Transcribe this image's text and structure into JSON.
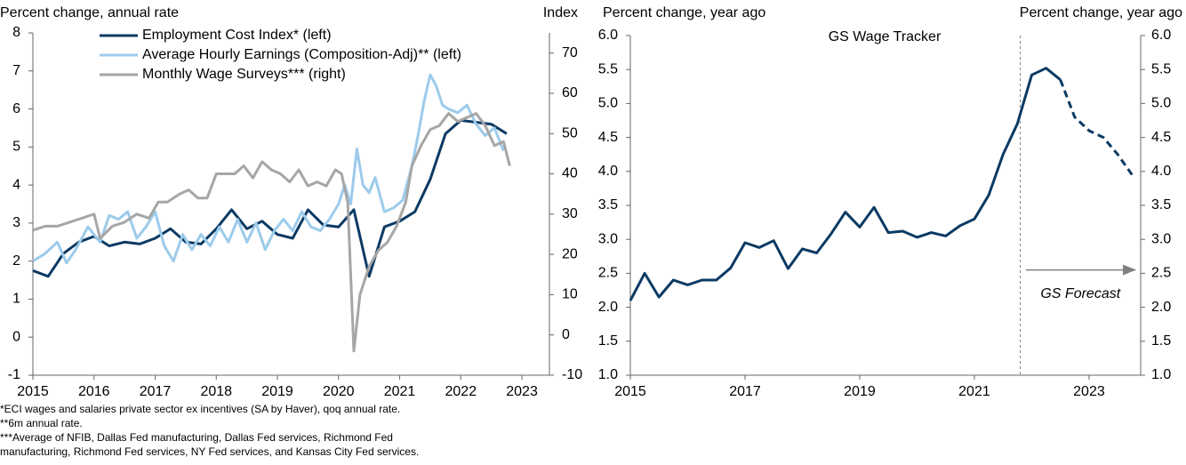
{
  "chart_data": [
    {
      "type": "line",
      "y_label": "Percent change, annual rate",
      "y2_label": "Index",
      "xlim": [
        2015,
        2023.45
      ],
      "xticks": [
        2015,
        2016,
        2017,
        2018,
        2019,
        2020,
        2021,
        2022,
        2023
      ],
      "ylim": [
        -1,
        8
      ],
      "yticks": [
        -1,
        0,
        1,
        2,
        3,
        4,
        5,
        6,
        7,
        8
      ],
      "y2lim": [
        -10,
        75
      ],
      "y2ticks": [
        -10,
        0,
        10,
        20,
        30,
        40,
        50,
        60,
        70
      ],
      "series": [
        {
          "name": "Employment Cost Index* (left)",
          "color": "#0b3a63",
          "axis": "y",
          "x": [
            2015,
            2015.25,
            2015.5,
            2015.75,
            2016,
            2016.25,
            2016.5,
            2016.75,
            2017,
            2017.25,
            2017.5,
            2017.75,
            2018,
            2018.25,
            2018.5,
            2018.75,
            2019,
            2019.25,
            2019.5,
            2019.75,
            2020,
            2020.25,
            2020.5,
            2020.75,
            2021,
            2021.25,
            2021.5,
            2021.75,
            2022,
            2022.25,
            2022.5,
            2022.75
          ],
          "values": [
            1.75,
            1.6,
            2.2,
            2.5,
            2.65,
            2.4,
            2.5,
            2.45,
            2.6,
            2.85,
            2.5,
            2.45,
            2.85,
            3.35,
            2.85,
            3.05,
            2.7,
            2.6,
            3.35,
            2.95,
            2.9,
            3.35,
            1.6,
            2.9,
            3.05,
            3.3,
            4.15,
            5.35,
            5.7,
            5.65,
            5.6,
            5.35
          ]
        },
        {
          "name": "Average Hourly Earnings (Composition-Adj)** (left)",
          "color": "#9ccbeb",
          "axis": "y",
          "x": [
            2015,
            2015.2,
            2015.4,
            2015.55,
            2015.7,
            2015.9,
            2016.1,
            2016.25,
            2016.4,
            2016.55,
            2016.7,
            2016.85,
            2017,
            2017.15,
            2017.3,
            2017.45,
            2017.6,
            2017.75,
            2017.9,
            2018.05,
            2018.2,
            2018.35,
            2018.5,
            2018.65,
            2018.8,
            2018.95,
            2019.1,
            2019.25,
            2019.4,
            2019.55,
            2019.7,
            2019.85,
            2020,
            2020.1,
            2020.2,
            2020.3,
            2020.4,
            2020.5,
            2020.6,
            2020.75,
            2020.9,
            2021.05,
            2021.2,
            2021.3,
            2021.4,
            2021.5,
            2021.6,
            2021.7,
            2021.8,
            2021.95,
            2022.1,
            2022.25,
            2022.4,
            2022.55,
            2022.7
          ],
          "values": [
            2.0,
            2.2,
            2.5,
            1.95,
            2.3,
            2.9,
            2.5,
            3.2,
            3.1,
            3.3,
            2.6,
            2.9,
            3.3,
            2.4,
            2.0,
            2.7,
            2.3,
            2.7,
            2.4,
            2.9,
            2.5,
            3.1,
            2.5,
            3.0,
            2.3,
            2.8,
            3.1,
            2.8,
            3.3,
            2.9,
            2.8,
            3.1,
            3.5,
            4.0,
            3.5,
            4.95,
            4.0,
            3.8,
            4.2,
            3.3,
            3.4,
            3.6,
            4.5,
            5.3,
            6.2,
            6.9,
            6.6,
            6.1,
            6.0,
            5.9,
            6.1,
            5.6,
            5.3,
            5.5,
            4.9
          ]
        },
        {
          "name": "Monthly Wage Surveys*** (right)",
          "color": "#a6a6a6",
          "axis": "y2",
          "x": [
            2015,
            2015.2,
            2015.4,
            2015.6,
            2015.8,
            2016,
            2016.1,
            2016.3,
            2016.5,
            2016.7,
            2016.9,
            2017.05,
            2017.2,
            2017.4,
            2017.55,
            2017.7,
            2017.85,
            2018,
            2018.15,
            2018.3,
            2018.45,
            2018.6,
            2018.75,
            2018.9,
            2019.05,
            2019.2,
            2019.35,
            2019.5,
            2019.65,
            2019.8,
            2019.95,
            2020.05,
            2020.15,
            2020.25,
            2020.35,
            2020.5,
            2020.65,
            2020.8,
            2020.95,
            2021.1,
            2021.2,
            2021.35,
            2021.5,
            2021.65,
            2021.8,
            2021.95,
            2022.1,
            2022.25,
            2022.4,
            2022.55,
            2022.7,
            2022.8
          ],
          "values": [
            26,
            27,
            27,
            28,
            29,
            30,
            24,
            27,
            28,
            30,
            29,
            33,
            33,
            35,
            36,
            34,
            34,
            40,
            40,
            40,
            42,
            39,
            43,
            41,
            40,
            38,
            41,
            37,
            38,
            37,
            41,
            40,
            33,
            -4,
            10,
            17,
            21,
            23,
            27,
            33,
            42,
            47,
            51,
            52,
            55,
            53,
            54,
            55,
            52,
            47,
            48,
            42
          ]
        }
      ]
    },
    {
      "type": "line",
      "title": "GS Wage Tracker",
      "y_label": "Percent change, year ago",
      "y2_label": "Percent change, year ago",
      "xlim": [
        2015,
        2023.9
      ],
      "xticks": [
        2015,
        2017,
        2019,
        2021,
        2023
      ],
      "ylim": [
        1,
        6
      ],
      "yticks": [
        {
          "value": 1,
          "label": "1.0"
        },
        {
          "value": 1.5,
          "label": "1.5"
        },
        {
          "value": 2,
          "label": "2.0"
        },
        {
          "value": 2.5,
          "label": "2.5"
        },
        {
          "value": 3,
          "label": "3.0"
        },
        {
          "value": 3.5,
          "label": "3.5"
        },
        {
          "value": 4,
          "label": "4.0"
        },
        {
          "value": 4.5,
          "label": "4.5"
        },
        {
          "value": 5,
          "label": "5.0"
        },
        {
          "value": 5.5,
          "label": "5.5"
        },
        {
          "value": 6,
          "label": "6.0"
        }
      ],
      "y2lim": [
        1,
        6
      ],
      "y2ticks": [
        {
          "value": 1,
          "label": "1.0"
        },
        {
          "value": 1.5,
          "label": "1.5"
        },
        {
          "value": 2,
          "label": "2.0"
        },
        {
          "value": 2.5,
          "label": "2.5"
        },
        {
          "value": 3,
          "label": "3.0"
        },
        {
          "value": 3.5,
          "label": "3.5"
        },
        {
          "value": 4,
          "label": "4.0"
        },
        {
          "value": 4.5,
          "label": "4.5"
        },
        {
          "value": 5,
          "label": "5.0"
        },
        {
          "value": 5.5,
          "label": "5.5"
        },
        {
          "value": 6,
          "label": "6.0"
        }
      ],
      "x": [
        2015,
        2015.25,
        2015.5,
        2015.75,
        2016,
        2016.25,
        2016.5,
        2016.75,
        2017,
        2017.25,
        2017.5,
        2017.75,
        2018,
        2018.25,
        2018.5,
        2018.75,
        2019,
        2019.25,
        2019.5,
        2019.75,
        2020,
        2020.25,
        2020.5,
        2020.75,
        2021,
        2021.25,
        2021.5,
        2021.75,
        2022,
        2022.25,
        2022.5,
        2022.75,
        2023,
        2023.25,
        2023.5,
        2023.75
      ],
      "series": [
        {
          "color": "#0b3a63",
          "values": [
            2.1,
            2.5,
            2.15,
            2.4,
            2.33,
            2.4,
            2.4,
            2.58,
            2.95,
            2.88,
            2.98,
            2.57,
            2.86,
            2.8,
            3.08,
            3.4,
            3.18,
            3.47,
            3.1,
            3.12,
            3.03,
            3.1,
            3.05,
            3.2,
            3.3,
            3.65,
            4.25,
            4.7,
            5.42,
            5.52,
            5.35,
            4.8,
            4.6,
            4.5,
            4.25,
            3.95
          ]
        }
      ],
      "dashed_from": 2022.5,
      "vline": 2021.8,
      "annotation": {
        "text": "GS Forecast",
        "x": [
          2021.9,
          2023.8
        ],
        "y": 2.55
      }
    }
  ],
  "footnotes": [
    "*ECI wages and salaries private sector ex incentives (SA by Haver), qoq annual rate.",
    "**6m annual rate.",
    "***Average of NFIB, Dallas Fed manufacturing, Dallas Fed services, Richmond Fed",
    "manufacturing, Richmond Fed services, NY Fed services, and Kansas City Fed services."
  ]
}
